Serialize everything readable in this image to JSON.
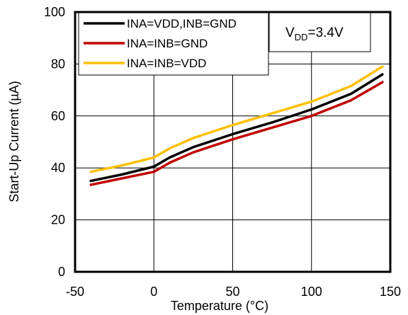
{
  "chart_data": {
    "type": "line",
    "xlabel": "Temperature (°C)",
    "ylabel": "Start-Up Current (µA)",
    "xlim": [
      -50,
      150
    ],
    "ylim": [
      0,
      100
    ],
    "xticks": [
      "-50",
      "0",
      "50",
      "100",
      "150"
    ],
    "yticks": [
      "0",
      "20",
      "40",
      "60",
      "80",
      "100"
    ],
    "xtick_values": [
      -50,
      0,
      50,
      100,
      150
    ],
    "ytick_values": [
      0,
      20,
      40,
      60,
      80,
      100
    ],
    "grid": true,
    "legend_position": "top-left",
    "annotation": {
      "main": "V",
      "sub": "DD",
      "suffix": "=3.4V"
    },
    "series": [
      {
        "name": "INA=VDD,INB=GND",
        "color": "#000000",
        "x": [
          -40,
          -20,
          0,
          10,
          25,
          50,
          75,
          100,
          125,
          145
        ],
        "y": [
          35,
          37.5,
          40.5,
          44,
          48,
          53,
          57.5,
          62.5,
          68.5,
          76
        ]
      },
      {
        "name": "INA=INB=GND",
        "color": "#c00000",
        "x": [
          -40,
          -20,
          0,
          10,
          25,
          50,
          75,
          100,
          125,
          145
        ],
        "y": [
          33.5,
          36,
          38.5,
          42,
          46,
          51,
          55.5,
          60,
          66,
          73
        ]
      },
      {
        "name": "INA=INB=VDD",
        "color": "#ffc000",
        "x": [
          -40,
          -20,
          0,
          10,
          25,
          50,
          75,
          100,
          125,
          145
        ],
        "y": [
          38.5,
          41,
          44,
          47.5,
          51.5,
          56.5,
          61,
          65.5,
          71.5,
          79
        ]
      }
    ]
  }
}
